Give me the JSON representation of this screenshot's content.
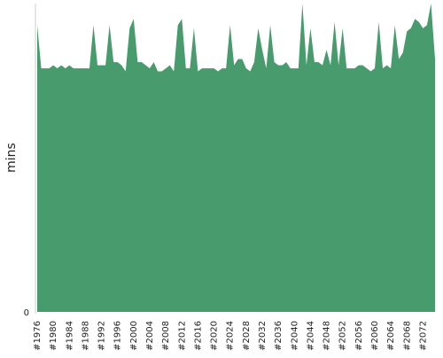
{
  "chart_data": {
    "type": "area",
    "y_label": "mins",
    "color": "#479b6c",
    "categories": [
      "#1976",
      null,
      null,
      null,
      "#1980",
      null,
      null,
      null,
      "#1984",
      null,
      null,
      null,
      "#1988",
      null,
      null,
      null,
      "#1992",
      null,
      null,
      null,
      "#1996",
      null,
      null,
      null,
      "#2000",
      null,
      null,
      null,
      "#2004",
      null,
      null,
      null,
      "#2008",
      null,
      null,
      null,
      "#2012",
      null,
      null,
      null,
      "#2016",
      null,
      null,
      null,
      "#2020",
      null,
      null,
      null,
      "#2024",
      null,
      null,
      null,
      "#2028",
      null,
      null,
      null,
      "#2032",
      null,
      null,
      null,
      "#2036",
      null,
      null,
      null,
      "#2040",
      null,
      null,
      null,
      "#2044",
      null,
      null,
      null,
      "#2048",
      null,
      null,
      null,
      "#2052",
      null,
      null,
      null,
      "#2056",
      null,
      null,
      null,
      "#2060",
      null,
      null,
      null,
      "#2064",
      null,
      null,
      null,
      "#2068",
      null,
      null,
      null,
      "#2072",
      null,
      null,
      null
    ],
    "values": [
      93,
      79,
      79,
      79,
      80,
      79,
      80,
      79,
      80,
      79,
      79,
      79,
      79,
      79,
      93,
      80,
      80,
      80,
      93,
      81,
      81,
      80,
      78,
      92,
      95,
      81,
      81,
      80,
      79,
      81,
      78,
      78,
      79,
      80,
      78,
      93,
      95,
      79,
      79,
      92,
      78,
      79,
      79,
      79,
      79,
      78,
      79,
      79,
      93,
      80,
      82,
      82,
      79,
      78,
      81,
      92,
      85,
      79,
      93,
      81,
      80,
      80,
      81,
      79,
      79,
      79,
      100,
      80,
      92,
      81,
      81,
      80,
      85,
      80,
      94,
      80,
      92,
      79,
      79,
      79,
      80,
      80,
      79,
      78,
      79,
      94,
      79,
      80,
      79,
      93,
      82,
      84,
      91,
      92,
      95,
      94,
      92,
      93,
      100,
      82
    ],
    "ylim": [
      0,
      100
    ],
    "yticks": [
      0
    ]
  }
}
